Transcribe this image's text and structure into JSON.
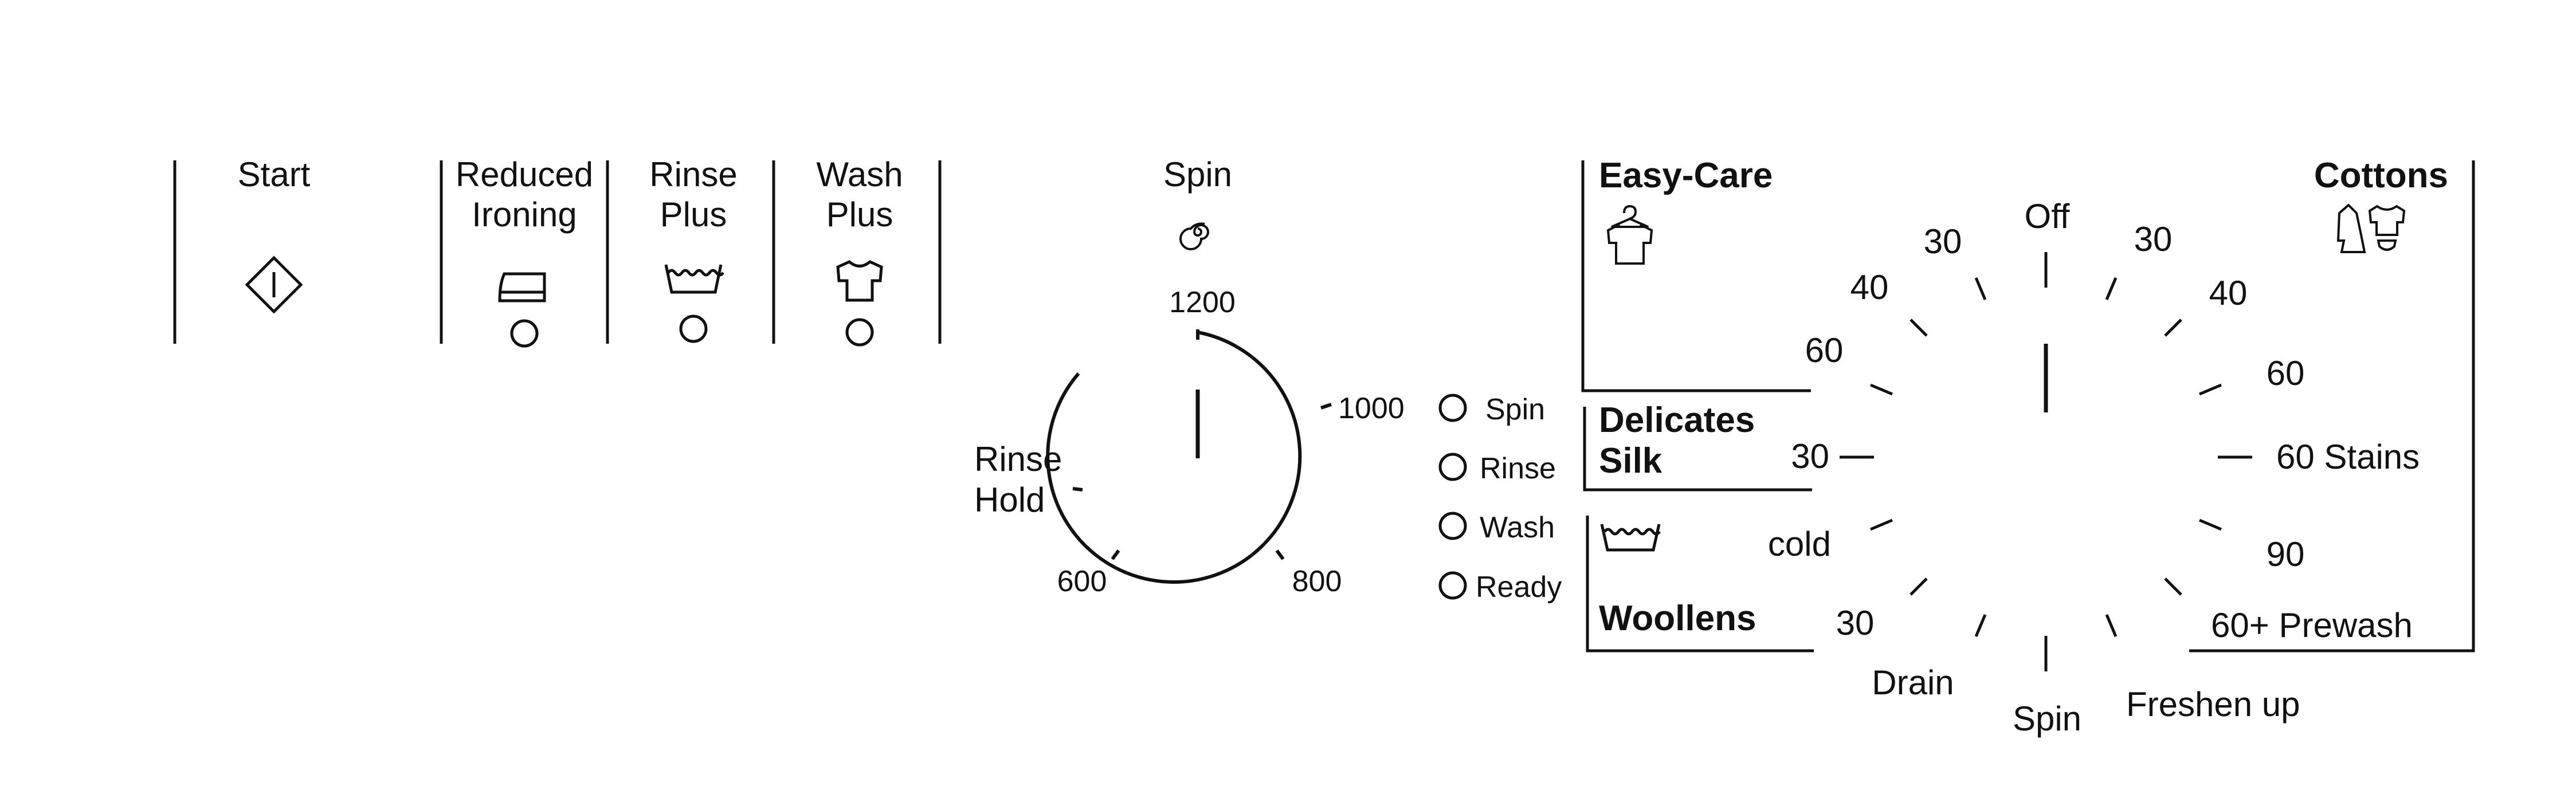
{
  "buttons": [
    {
      "id": "start",
      "lines": [
        "Start"
      ],
      "icon": "start-diamond-icon"
    },
    {
      "id": "reduced-ironing",
      "lines": [
        "Reduced",
        "Ironing"
      ],
      "icon": "iron-icon"
    },
    {
      "id": "rinse-plus",
      "lines": [
        "Rinse",
        "Plus"
      ],
      "icon": "water-tub-icon"
    },
    {
      "id": "wash-plus",
      "lines": [
        "Wash",
        "Plus"
      ],
      "icon": "tshirt-icon"
    }
  ],
  "spin": {
    "title": "Spin",
    "icon": "spiral-icon",
    "marks": [
      "1200",
      "1000",
      "800",
      "600"
    ],
    "rinse_hold": [
      "Rinse",
      "Hold"
    ]
  },
  "status": [
    "Spin",
    "Rinse",
    "Wash",
    "Ready"
  ],
  "programs": {
    "easy_care": "Easy-Care",
    "cottons": "Cottons",
    "delicates": [
      "Delicates",
      "Silk"
    ],
    "woollens": "Woollens",
    "dial_labels": {
      "off": "Off",
      "easy_30": "30",
      "easy_40": "40",
      "easy_60": "60",
      "delicates_30": "30",
      "woollens_cold": "cold",
      "woollens_30": "30",
      "drain": "Drain",
      "spin": "Spin",
      "freshen_up": "Freshen up",
      "cottons_30": "30",
      "cottons_40": "40",
      "cottons_60": "60",
      "stains": "60 Stains",
      "cottons_90": "90",
      "prewash": "60+ Prewash"
    }
  }
}
